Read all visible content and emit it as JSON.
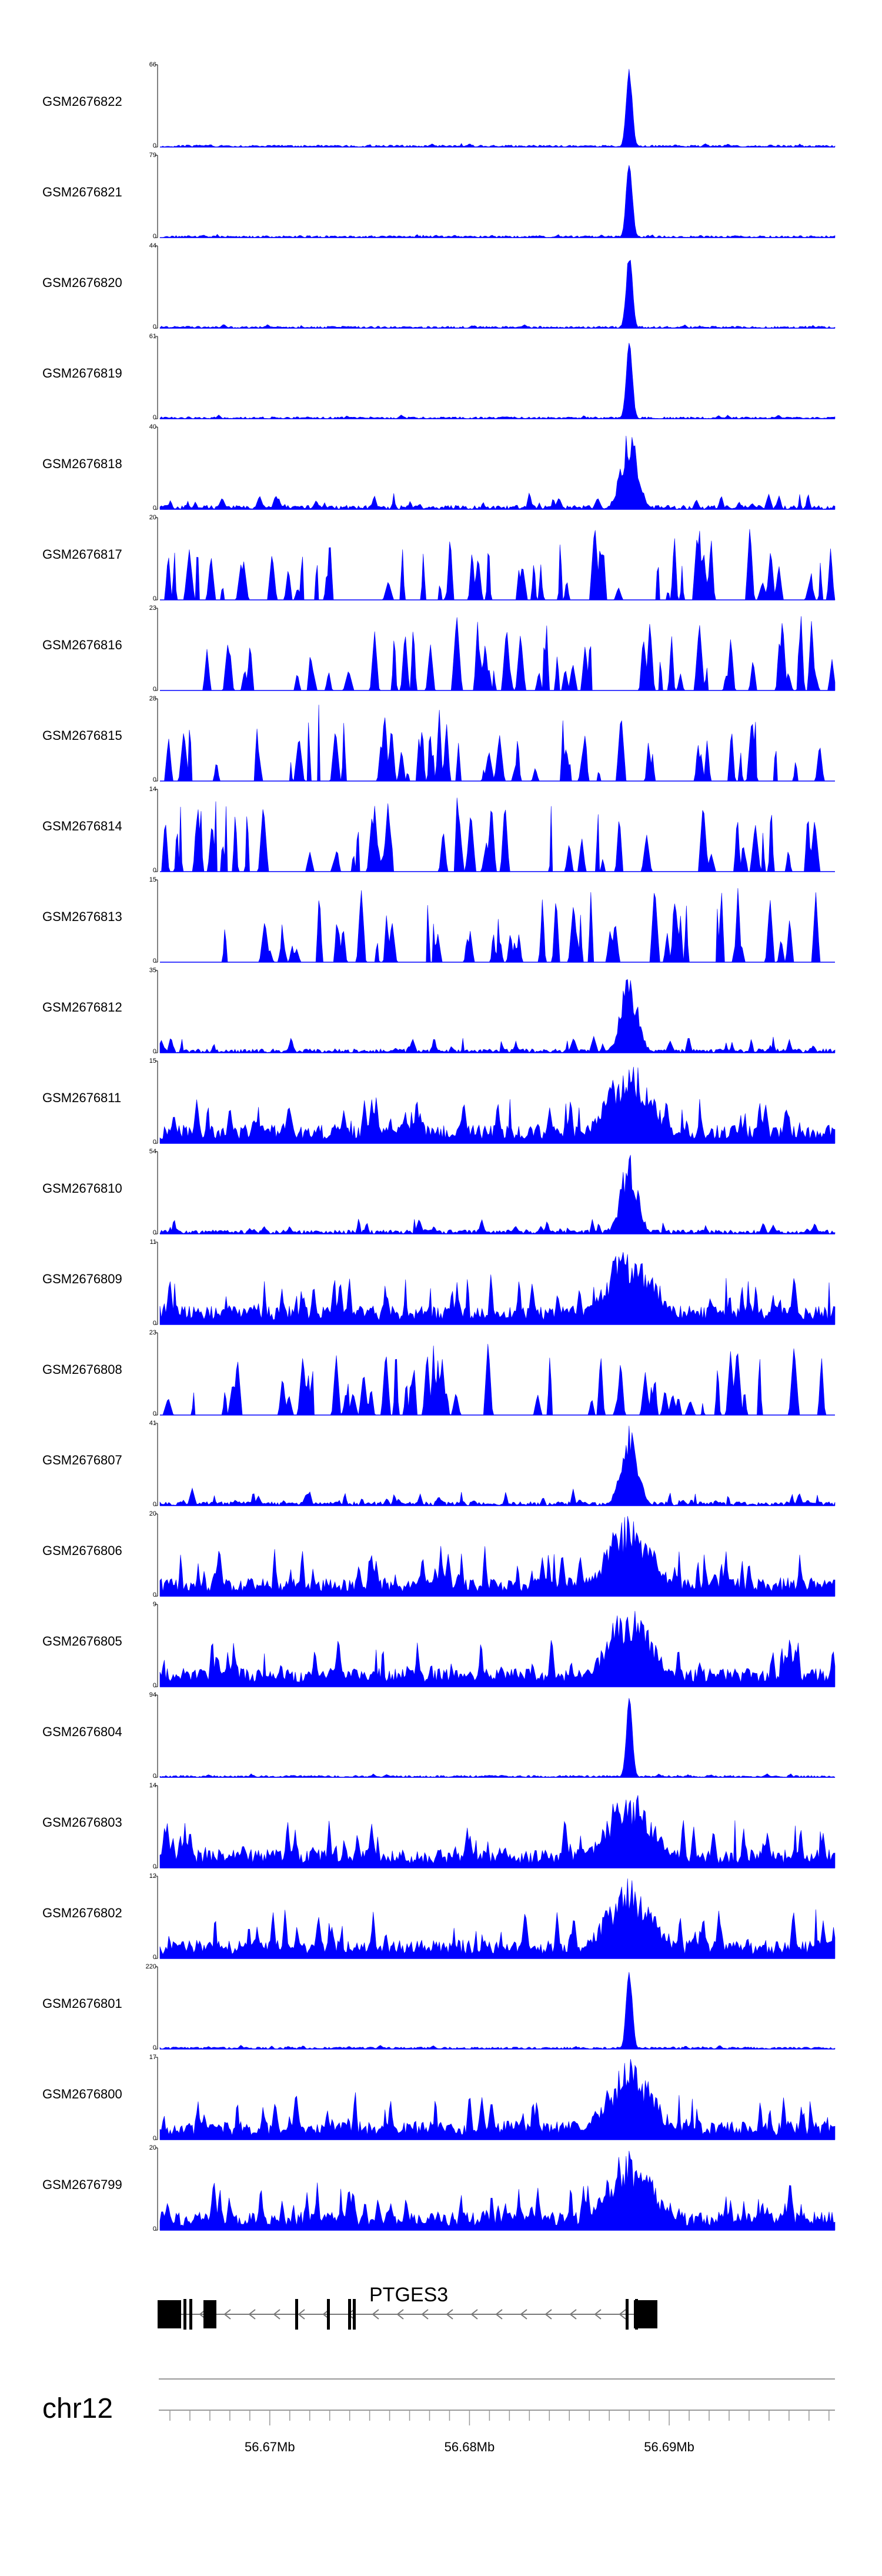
{
  "chart_data": {
    "type": "area",
    "description_note": "Genome browser coverage tracks (peaks drawn as filled area)",
    "series_color": "#0000ff",
    "tracks": [
      {
        "name": "GSM2676822",
        "ymax": "66",
        "ymin": "0",
        "profile": "sharp"
      },
      {
        "name": "GSM2676821",
        "ymax": "79",
        "ymin": "0",
        "profile": "sharp"
      },
      {
        "name": "GSM2676820",
        "ymax": "44",
        "ymin": "0",
        "profile": "sharp"
      },
      {
        "name": "GSM2676819",
        "ymax": "61",
        "ymin": "0",
        "profile": "sharp"
      },
      {
        "name": "GSM2676818",
        "ymax": "40",
        "ymin": "0",
        "profile": "medium"
      },
      {
        "name": "GSM2676817",
        "ymax": "20",
        "ymin": "0",
        "profile": "sparse"
      },
      {
        "name": "GSM2676816",
        "ymax": "23",
        "ymin": "0",
        "profile": "sparse"
      },
      {
        "name": "GSM2676815",
        "ymax": "28",
        "ymin": "0",
        "profile": "sparse"
      },
      {
        "name": "GSM2676814",
        "ymax": "14",
        "ymin": "0",
        "profile": "sparse"
      },
      {
        "name": "GSM2676813",
        "ymax": "15",
        "ymin": "0",
        "profile": "sparse"
      },
      {
        "name": "GSM2676812",
        "ymax": "35",
        "ymin": "0",
        "profile": "medium"
      },
      {
        "name": "GSM2676811",
        "ymax": "15",
        "ymin": "0",
        "profile": "broad"
      },
      {
        "name": "GSM2676810",
        "ymax": "54",
        "ymin": "0",
        "profile": "medium"
      },
      {
        "name": "GSM2676809",
        "ymax": "11",
        "ymin": "0",
        "profile": "broad"
      },
      {
        "name": "GSM2676808",
        "ymax": "23",
        "ymin": "0",
        "profile": "sparse"
      },
      {
        "name": "GSM2676807",
        "ymax": "41",
        "ymin": "0",
        "profile": "medium"
      },
      {
        "name": "GSM2676806",
        "ymax": "20",
        "ymin": "0",
        "profile": "broad"
      },
      {
        "name": "GSM2676805",
        "ymax": "9",
        "ymin": "0",
        "profile": "broad"
      },
      {
        "name": "GSM2676804",
        "ymax": "94",
        "ymin": "0",
        "profile": "sharp"
      },
      {
        "name": "GSM2676803",
        "ymax": "14",
        "ymin": "0",
        "profile": "broad"
      },
      {
        "name": "GSM2676802",
        "ymax": "12",
        "ymin": "0",
        "profile": "broad"
      },
      {
        "name": "GSM2676801",
        "ymax": "220",
        "ymin": "0",
        "profile": "sharp"
      },
      {
        "name": "GSM2676800",
        "ymax": "17",
        "ymin": "0",
        "profile": "broad"
      },
      {
        "name": "GSM2676799",
        "ymax": "20",
        "ymin": "0",
        "profile": "broad"
      }
    ],
    "gene": {
      "name": "PTGES3",
      "strand": "-"
    },
    "chromosome": "chr12",
    "x_ticks": [
      {
        "label": "56.67Mb",
        "value": 56.67
      },
      {
        "label": "56.68Mb",
        "value": 56.68
      },
      {
        "label": "56.69Mb",
        "value": 56.69
      }
    ],
    "xlim": [
      56.6645,
      56.6983
    ],
    "peak_position_mb": 56.688
  }
}
